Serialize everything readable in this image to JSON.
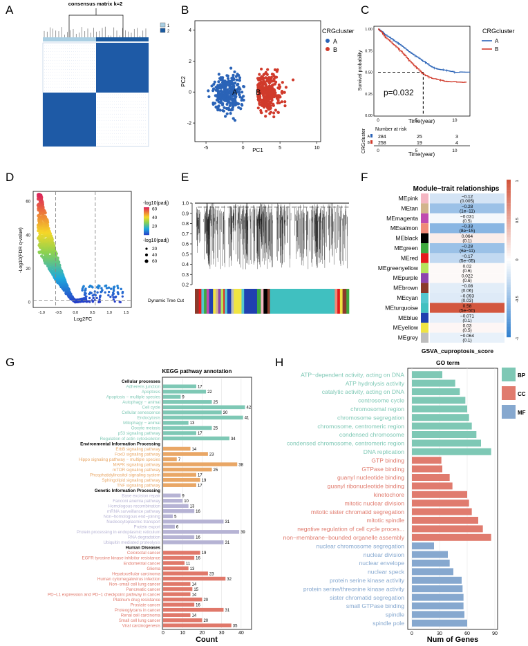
{
  "panels": {
    "A": "A",
    "B": "B",
    "C": "C",
    "D": "D",
    "E": "E",
    "F": "F",
    "G": "G",
    "H": "H"
  },
  "colors": {
    "blue": "#2a63b7",
    "red": "#d03a2b",
    "teal": "#7ec8b5",
    "orange": "#e9a766",
    "lavender": "#b6b3d4",
    "salmon": "#e0786a",
    "go_bp": "#7ec8b5",
    "go_cc": "#e07b6e",
    "go_mf": "#86a8cf"
  },
  "panelA": {
    "title": "consensus matrix k=2",
    "legend": [
      "1",
      "2"
    ],
    "colors": [
      "#aacfe3",
      "#1a5aa0"
    ]
  },
  "chart_data": [
    {
      "id": "pca",
      "type": "scatter",
      "xlabel": "PC1",
      "ylabel": "PC2",
      "xticks": [
        -5,
        0,
        5,
        10
      ],
      "yticks": [
        -2,
        0,
        2,
        4
      ],
      "xlim": [
        -6.5,
        10.5
      ],
      "ylim": [
        -3.2,
        4.6
      ],
      "legend_title": "CRGcluster",
      "series": [
        {
          "name": "A",
          "color": "#2a63b7",
          "n": 300
        },
        {
          "name": "B",
          "color": "#d03a2b",
          "n": 300
        }
      ],
      "centroid_labels": [
        "A",
        "B"
      ]
    },
    {
      "id": "km",
      "type": "line",
      "xlabel": "Time(year)",
      "ylabel": "Survival probability",
      "xticks": [
        0,
        5,
        10
      ],
      "yticks": [
        "1.00",
        "0.75",
        "0.50",
        "0.25",
        "0.00"
      ],
      "legend_title": "CRGcluster",
      "series": [
        {
          "name": "A",
          "color": "#2a63b7",
          "points": [
            [
              0,
              1
            ],
            [
              0.5,
              0.97
            ],
            [
              1,
              0.93
            ],
            [
              2,
              0.87
            ],
            [
              3,
              0.81
            ],
            [
              4,
              0.74
            ],
            [
              5,
              0.68
            ],
            [
              6,
              0.62
            ],
            [
              7,
              0.56
            ],
            [
              8,
              0.53
            ],
            [
              9,
              0.52
            ],
            [
              10,
              0.5
            ],
            [
              12,
              0.5
            ]
          ]
        },
        {
          "name": "B",
          "color": "#d03a2b",
          "points": [
            [
              0,
              1
            ],
            [
              0.5,
              0.96
            ],
            [
              1,
              0.9
            ],
            [
              2,
              0.82
            ],
            [
              3,
              0.74
            ],
            [
              4,
              0.64
            ],
            [
              5,
              0.55
            ],
            [
              6,
              0.47
            ],
            [
              7,
              0.43
            ],
            [
              8,
              0.41
            ],
            [
              9,
              0.39
            ],
            [
              10,
              0.39
            ],
            [
              11.5,
              0.38
            ]
          ]
        }
      ],
      "pvalue": "p=0.032",
      "risk_table": {
        "title": "Number at risk",
        "ylabel": "CRGcluster",
        "xlabel": "Time(year)",
        "rows": [
          {
            "label": "A",
            "values": [
              "284",
              "25",
              "3"
            ]
          },
          {
            "label": "B",
            "values": [
              "258",
              "19",
              "4"
            ]
          }
        ]
      }
    },
    {
      "id": "volcano",
      "type": "scatter",
      "xlabel": "Log2FC",
      "ylabel": "-Log10(FDR q-value)",
      "xticks": [
        "-1.0",
        "-0.5",
        "0.0",
        "0.5",
        "1.0",
        "1.5"
      ],
      "yticks": [
        0,
        20,
        40,
        60
      ],
      "xlim": [
        -1.25,
        1.65
      ],
      "ylim": [
        -3,
        66
      ],
      "legend_color_title": "-log10(padj)",
      "legend_color_ticks": [
        "60",
        "40",
        "20"
      ],
      "legend_size_title": "-log10(padj)",
      "legend_size_ticks": [
        "20",
        "40",
        "60"
      ]
    },
    {
      "id": "dendrogram",
      "type": "other",
      "yticks": [
        "1.0",
        "0.9",
        "0.8",
        "0.7",
        "0.6",
        "0.5",
        "0.4",
        "0.3",
        "0.2"
      ],
      "row_label": "Dynamic Tree Cut"
    },
    {
      "id": "module_trait",
      "type": "heatmap",
      "title": "Module−trait relationships",
      "xlabel": "GSVA_cuproptosis_score",
      "scale_ticks": [
        "1",
        "0.5",
        "0",
        "-0.5",
        "-1"
      ],
      "rows": [
        {
          "module": "MEpink",
          "swatch": "#f4b6c2",
          "r": "−0.12",
          "p": "(0.005)",
          "val": -0.12
        },
        {
          "module": "MEtan",
          "swatch": "#d2b48c",
          "r": "−0.28",
          "p": "(1e−11)",
          "val": -0.28
        },
        {
          "module": "MEmagenta",
          "swatch": "#c04ab0",
          "r": "−0.031",
          "p": "(0.5)",
          "val": -0.031
        },
        {
          "module": "MEsalmon",
          "swatch": "#f08a78",
          "r": "−0.33",
          "p": "(8e−15)",
          "val": -0.33
        },
        {
          "module": "MEblack",
          "swatch": "#000000",
          "r": "0.064",
          "p": "(0.1)",
          "val": 0.064
        },
        {
          "module": "MEgreen",
          "swatch": "#3fa83f",
          "r": "−0.28",
          "p": "(6e−11)",
          "val": -0.28
        },
        {
          "module": "MEred",
          "swatch": "#e41a1c",
          "r": "−0.17",
          "p": "(5e−05)",
          "val": -0.17
        },
        {
          "module": "MEgreenyellow",
          "swatch": "#b5e35b",
          "r": "0.02",
          "p": "(0.6)",
          "val": 0.02
        },
        {
          "module": "MEpurple",
          "swatch": "#8e44ad",
          "r": "0.022",
          "p": "(0.6)",
          "val": 0.022
        },
        {
          "module": "MEbrown",
          "swatch": "#8b3a2b",
          "r": "−0.08",
          "p": "(0.06)",
          "val": -0.08
        },
        {
          "module": "MEcyan",
          "swatch": "#54c7cf",
          "r": "−0.093",
          "p": "(0.03)",
          "val": -0.093
        },
        {
          "module": "MEturquoise",
          "swatch": "#40c0c0",
          "r": "0.58",
          "p": "(5e−50)",
          "val": 0.58
        },
        {
          "module": "MEblue",
          "swatch": "#2040b0",
          "r": "−0.071",
          "p": "(0.1)",
          "val": -0.071
        },
        {
          "module": "MEyellow",
          "swatch": "#f0e442",
          "r": "0.03",
          "p": "(0.5)",
          "val": 0.03
        },
        {
          "module": "MEgrey",
          "swatch": "#bdbdbd",
          "r": "−0.064",
          "p": "(0.1)",
          "val": -0.064
        }
      ]
    },
    {
      "id": "kegg",
      "type": "bar",
      "title": "KEGG pathway annotation",
      "xlabel": "Count",
      "xticks": [
        0,
        10,
        20,
        30,
        40
      ],
      "xlim": [
        0,
        45
      ],
      "groups": [
        {
          "name": "Cellular processes",
          "color": "#7ec8b5",
          "items": [
            {
              "label": "Adherens junction",
              "value": 17
            },
            {
              "label": "Apoptosis",
              "value": 22
            },
            {
              "label": "Apoptosis − multiple species",
              "value": 9
            },
            {
              "label": "Autophagy − animal",
              "value": 25
            },
            {
              "label": "Cell cycle",
              "value": 42
            },
            {
              "label": "Cellular senescence",
              "value": 30
            },
            {
              "label": "Endocytosis",
              "value": 41
            },
            {
              "label": "Mitophagy − animal",
              "value": 13
            },
            {
              "label": "Oocyte meiosis",
              "value": 25
            },
            {
              "label": "p53 signaling pathway",
              "value": 17
            },
            {
              "label": "Regulation of actin cytoskeleton",
              "value": 34
            }
          ]
        },
        {
          "name": "Environmental Information Processing",
          "color": "#e9a766",
          "items": [
            {
              "label": "ErbB signaling pathway",
              "value": 14
            },
            {
              "label": "FoxO signaling pathway",
              "value": 23
            },
            {
              "label": "Hippo signaling pathway − multiple species",
              "value": 7
            },
            {
              "label": "MAPK signaling pathway",
              "value": 38
            },
            {
              "label": "mTOR signaling pathway",
              "value": 25
            },
            {
              "label": "Phosphatidylinositol signaling system",
              "value": 17
            },
            {
              "label": "Sphingolipid signaling pathway",
              "value": 19
            },
            {
              "label": "TNF signaling pathway",
              "value": 17
            }
          ]
        },
        {
          "name": "Genetic Information Processing",
          "color": "#b6b3d4",
          "items": [
            {
              "label": "Base excision repair",
              "value": 9
            },
            {
              "label": "Fanconi anemia pathway",
              "value": 10
            },
            {
              "label": "Homologous recombination",
              "value": 13
            },
            {
              "label": "mRNA surveillance pathway",
              "value": 16
            },
            {
              "label": "Non−homologous end−joining",
              "value": 5
            },
            {
              "label": "Nucleocytoplasmic transport",
              "value": 31
            },
            {
              "label": "Protein export",
              "value": 6
            },
            {
              "label": "Protein processing in endoplasmic reticulum",
              "value": 39
            },
            {
              "label": "RNA degradation",
              "value": 16
            },
            {
              "label": "Ubiquitin mediated proteolysis",
              "value": 31
            }
          ]
        },
        {
          "name": "Human Diseases",
          "color": "#e0786a",
          "items": [
            {
              "label": "Colorectal cancer",
              "value": 19
            },
            {
              "label": "EGFR tyrosine kinase inhibitor resistance",
              "value": 16
            },
            {
              "label": "Endometrial cancer",
              "value": 11
            },
            {
              "label": "Glioma",
              "value": 13
            },
            {
              "label": "Hepatocellular carcinoma",
              "value": 23
            },
            {
              "label": "Human cytomegalovirus infection",
              "value": 32
            },
            {
              "label": "Non−small cell lung cancer",
              "value": 14
            },
            {
              "label": "Pancreatic cancer",
              "value": 15
            },
            {
              "label": "PD−L1 expression and PD−1 checkpoint pathway in cancer",
              "value": 14
            },
            {
              "label": "Platinum drug resistance",
              "value": 20
            },
            {
              "label": "Prostate cancer",
              "value": 16
            },
            {
              "label": "Proteoglycans in cancer",
              "value": 31
            },
            {
              "label": "Renal cell carcinoma",
              "value": 14
            },
            {
              "label": "Small cell lung cancer",
              "value": 20
            },
            {
              "label": "Viral carcinogenesis",
              "value": 35
            }
          ]
        }
      ]
    },
    {
      "id": "go",
      "type": "bar",
      "title": "GO term",
      "xlabel": "Num of Genes",
      "xticks": [
        0,
        30,
        60,
        90
      ],
      "xlim": [
        0,
        90
      ],
      "legend": [
        {
          "name": "BP",
          "color": "#7ec8b5"
        },
        {
          "name": "CC",
          "color": "#e07b6e"
        },
        {
          "name": "MF",
          "color": "#86a8cf"
        }
      ],
      "items": [
        {
          "label": "ATP−dependent activity, acting on DNA",
          "value": 33,
          "cat": "BP"
        },
        {
          "label": "ATP hydrolysis activity",
          "value": 47,
          "cat": "BP"
        },
        {
          "label": "catalytic activity, acting on DNA",
          "value": 52,
          "cat": "BP"
        },
        {
          "label": "centrosome cycle",
          "value": 58,
          "cat": "BP"
        },
        {
          "label": "chromosomal region",
          "value": 60,
          "cat": "BP"
        },
        {
          "label": "chromosome segregation",
          "value": 62,
          "cat": "BP"
        },
        {
          "label": "chromosome, centromeric region",
          "value": 65,
          "cat": "BP"
        },
        {
          "label": "condensed chromosome",
          "value": 70,
          "cat": "BP"
        },
        {
          "label": "condensed chromosome, centromeric region",
          "value": 75,
          "cat": "BP"
        },
        {
          "label": "DNA replication",
          "value": 86,
          "cat": "BP"
        },
        {
          "label": "GTP binding",
          "value": 32,
          "cat": "CC"
        },
        {
          "label": "GTPase binding",
          "value": 33,
          "cat": "CC"
        },
        {
          "label": "guanyl nucleotide binding",
          "value": 41,
          "cat": "CC"
        },
        {
          "label": "guanyl ribonucleotide binding",
          "value": 44,
          "cat": "CC"
        },
        {
          "label": "kinetochore",
          "value": 60,
          "cat": "CC"
        },
        {
          "label": "mitotic nuclear division",
          "value": 62,
          "cat": "CC"
        },
        {
          "label": "mitotic sister chromatid segregation",
          "value": 65,
          "cat": "CC"
        },
        {
          "label": "mitotic spindle",
          "value": 72,
          "cat": "CC"
        },
        {
          "label": "negative regulation of cell cycle proces...",
          "value": 77,
          "cat": "CC"
        },
        {
          "label": "non−membrane−bounded organelle assembly",
          "value": 86,
          "cat": "CC"
        },
        {
          "label": "nuclear chromosome segregation",
          "value": 24,
          "cat": "MF"
        },
        {
          "label": "nuclear division",
          "value": 39,
          "cat": "MF"
        },
        {
          "label": "nuclear envelope",
          "value": 41,
          "cat": "MF"
        },
        {
          "label": "nuclear speck",
          "value": 45,
          "cat": "MF"
        },
        {
          "label": "protein serine kinase activity",
          "value": 54,
          "cat": "MF"
        },
        {
          "label": "protein serine/threonine kinase activity",
          "value": 55,
          "cat": "MF"
        },
        {
          "label": "sister chromatid segregation",
          "value": 56,
          "cat": "MF"
        },
        {
          "label": "small GTPase binding",
          "value": 56,
          "cat": "MF"
        },
        {
          "label": "spindle",
          "value": 57,
          "cat": "MF"
        },
        {
          "label": "spindle pole",
          "value": 60,
          "cat": "MF"
        }
      ]
    }
  ]
}
